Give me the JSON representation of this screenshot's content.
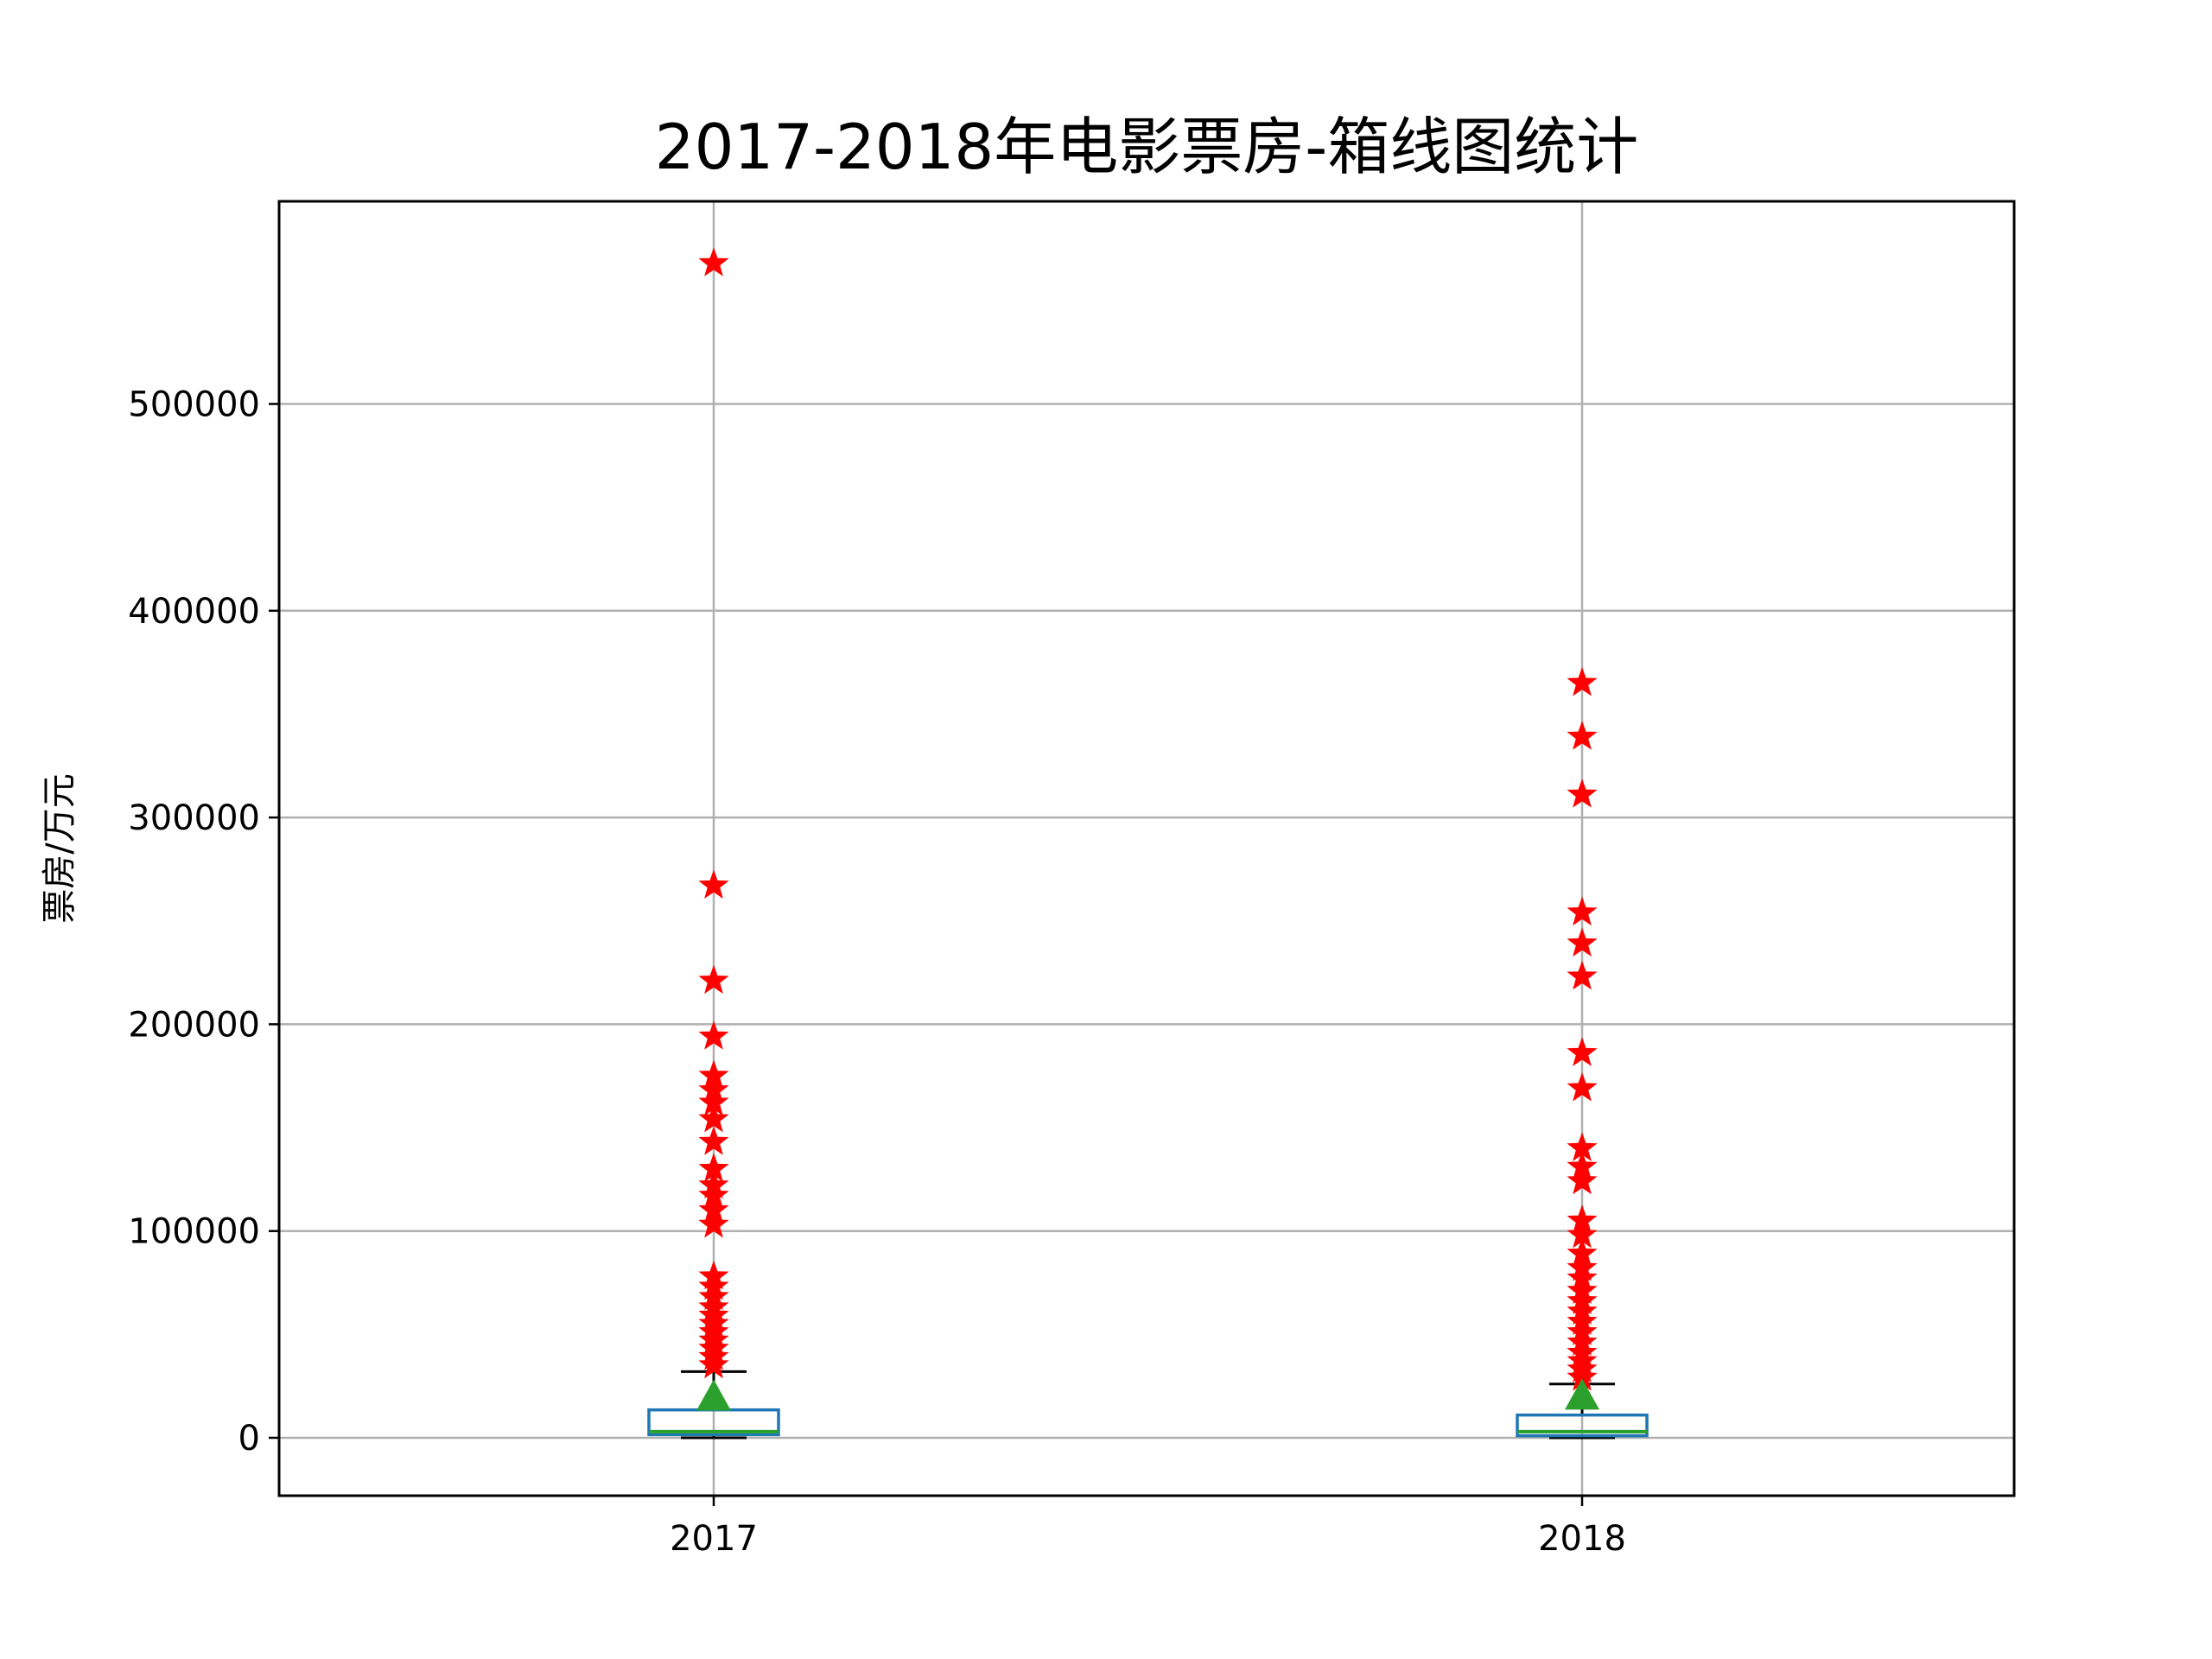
{
  "chart_data": {
    "type": "box",
    "title": "2017-2018年电影票房-箱线图统计",
    "xlabel": "",
    "ylabel": "票房/万元",
    "ylim": [
      -28000,
      598000
    ],
    "yticks": [
      0,
      100000,
      200000,
      300000,
      400000,
      500000
    ],
    "ytick_labels": [
      "0",
      "100000",
      "200000",
      "300000",
      "400000",
      "500000"
    ],
    "grid": true,
    "categories": [
      "2017",
      "2018"
    ],
    "boxes": [
      {
        "category": "2017",
        "whislo": 0,
        "q1": 1500,
        "median": 3000,
        "q3": 13500,
        "whishi": 32000,
        "mean": 19000,
        "fliers": [
          568000,
          267000,
          221000,
          194000,
          175000,
          168000,
          162000,
          154000,
          143000,
          130000,
          122000,
          117000,
          110000,
          103000,
          78000,
          73000,
          68000,
          63000,
          59000,
          55000,
          51000,
          47000,
          43000,
          39000,
          35000
        ]
      },
      {
        "category": "2018",
        "whislo": 0,
        "q1": 1000,
        "median": 3000,
        "q3": 11000,
        "whishi": 26000,
        "mean": 19500,
        "fliers": [
          365000,
          339000,
          311000,
          254000,
          239000,
          223000,
          186000,
          169000,
          140000,
          131000,
          124000,
          105000,
          98000,
          89000,
          82000,
          77000,
          71000,
          66000,
          61000,
          56000,
          51000,
          46000,
          41000,
          37000,
          33000,
          29000
        ]
      }
    ],
    "colors": {
      "box": "#1f77b4",
      "median": "#2ca02c",
      "mean": "#2ca02c",
      "whisker": "#000000",
      "flier": "#ff0000",
      "grid": "#b0b0b0"
    }
  }
}
